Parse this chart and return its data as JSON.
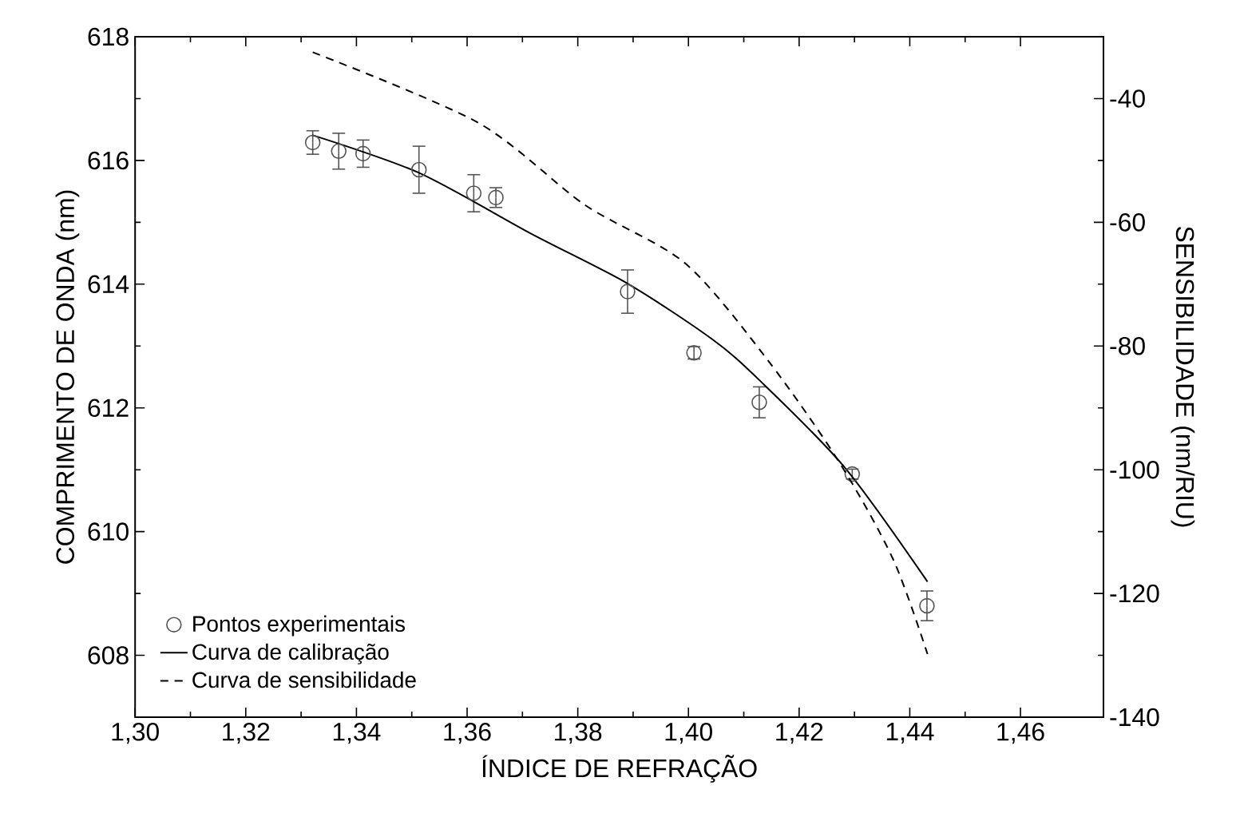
{
  "chart_data": {
    "type": "scatter",
    "xlabel": "ÍNDICE DE REFRAÇÃO",
    "ylabel": "COMPRIMENTO DE ONDA (nm)",
    "y2label": "SENSIBILIDADE (nm/RIU)",
    "xlim": [
      1.3,
      1.475
    ],
    "xticks": [
      {
        "value": 1.3,
        "label": "1,30"
      },
      {
        "value": 1.32,
        "label": "1,32"
      },
      {
        "value": 1.34,
        "label": "1,34"
      },
      {
        "value": 1.36,
        "label": "1,36"
      },
      {
        "value": 1.38,
        "label": "1,38"
      },
      {
        "value": 1.4,
        "label": "1,40"
      },
      {
        "value": 1.42,
        "label": "1,42"
      },
      {
        "value": 1.44,
        "label": "1,44"
      },
      {
        "value": 1.46,
        "label": "1,46"
      }
    ],
    "ylim": [
      607,
      618
    ],
    "yticks": [
      608,
      610,
      612,
      614,
      616,
      618
    ],
    "y2lim": [
      -140,
      -30
    ],
    "y2ticks": [
      -140,
      -120,
      -100,
      -80,
      -60,
      -40
    ],
    "legend": "bottom left",
    "series": [
      {
        "name": "Pontos experimentais",
        "marker": "circle",
        "color": "#555555",
        "x": [
          1.3321,
          1.3368,
          1.3412,
          1.3513,
          1.3612,
          1.3652,
          1.389,
          1.401,
          1.4128,
          1.4296,
          1.4431
        ],
        "values": [
          616.29,
          616.15,
          616.11,
          615.85,
          615.47,
          615.4,
          613.88,
          612.89,
          612.09,
          610.93,
          608.8
        ],
        "errors": [
          0.19,
          0.29,
          0.22,
          0.38,
          0.3,
          0.16,
          0.35,
          0.1,
          0.25,
          0.08,
          0.24
        ]
      },
      {
        "name": "Curva de calibração",
        "type": "line",
        "line_style": "solid",
        "color": "#000000",
        "x": [
          1.332,
          1.3513,
          1.3717,
          1.389,
          1.4043,
          1.4128,
          1.4283,
          1.4432
        ],
        "values": [
          616.41,
          615.8,
          614.81,
          614.01,
          613.11,
          612.45,
          611.03,
          609.19
        ]
      },
      {
        "name": "Curva de sensibilidade",
        "type": "line",
        "axis": "y2",
        "line_style": "dashed",
        "color": "#000000",
        "x": [
          1.3321,
          1.362,
          1.3813,
          1.3995,
          1.4146,
          1.4274,
          1.437,
          1.4432
        ],
        "values": [
          -32.5,
          -43.9,
          -57.2,
          -66.7,
          -82.6,
          -99,
          -114.5,
          -129.8
        ]
      }
    ]
  }
}
